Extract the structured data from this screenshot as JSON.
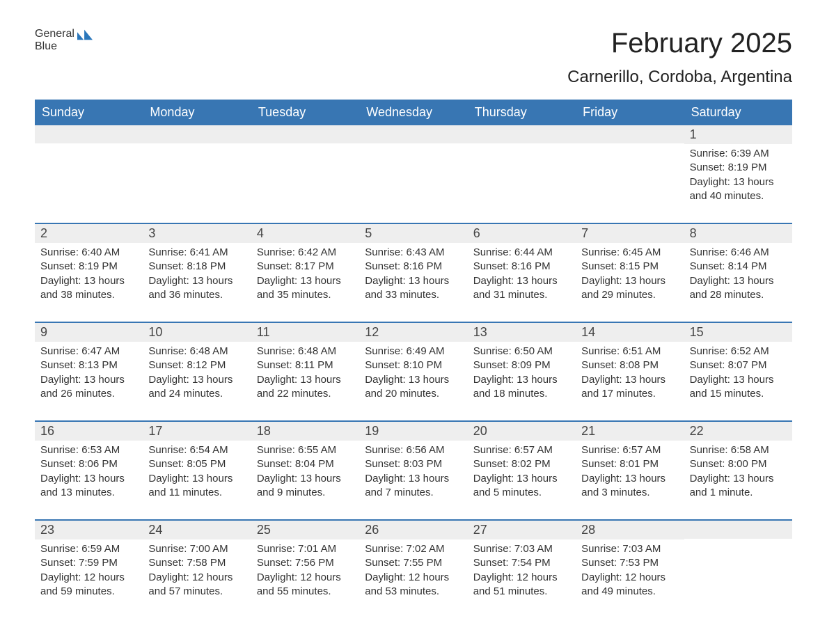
{
  "brand": {
    "part1": "General",
    "part2": "Blue",
    "text_color": "#1a1a1a",
    "accent_color": "#2a77bb"
  },
  "title": "February 2025",
  "location": "Carnerillo, Cordoba, Argentina",
  "colors": {
    "header_bg": "#3876b3",
    "header_text": "#ffffff",
    "row_divider": "#3876b3",
    "daynum_bg": "#eeeeee",
    "body_text": "#333333",
    "page_bg": "#ffffff"
  },
  "fonts": {
    "title_size_pt": 30,
    "location_size_pt": 18,
    "dow_size_pt": 14,
    "body_size_pt": 11
  },
  "days_of_week": [
    "Sunday",
    "Monday",
    "Tuesday",
    "Wednesday",
    "Thursday",
    "Friday",
    "Saturday"
  ],
  "weeks": [
    [
      null,
      null,
      null,
      null,
      null,
      null,
      {
        "n": "1",
        "sunrise": "Sunrise: 6:39 AM",
        "sunset": "Sunset: 8:19 PM",
        "daylight": "Daylight: 13 hours and 40 minutes."
      }
    ],
    [
      {
        "n": "2",
        "sunrise": "Sunrise: 6:40 AM",
        "sunset": "Sunset: 8:19 PM",
        "daylight": "Daylight: 13 hours and 38 minutes."
      },
      {
        "n": "3",
        "sunrise": "Sunrise: 6:41 AM",
        "sunset": "Sunset: 8:18 PM",
        "daylight": "Daylight: 13 hours and 36 minutes."
      },
      {
        "n": "4",
        "sunrise": "Sunrise: 6:42 AM",
        "sunset": "Sunset: 8:17 PM",
        "daylight": "Daylight: 13 hours and 35 minutes."
      },
      {
        "n": "5",
        "sunrise": "Sunrise: 6:43 AM",
        "sunset": "Sunset: 8:16 PM",
        "daylight": "Daylight: 13 hours and 33 minutes."
      },
      {
        "n": "6",
        "sunrise": "Sunrise: 6:44 AM",
        "sunset": "Sunset: 8:16 PM",
        "daylight": "Daylight: 13 hours and 31 minutes."
      },
      {
        "n": "7",
        "sunrise": "Sunrise: 6:45 AM",
        "sunset": "Sunset: 8:15 PM",
        "daylight": "Daylight: 13 hours and 29 minutes."
      },
      {
        "n": "8",
        "sunrise": "Sunrise: 6:46 AM",
        "sunset": "Sunset: 8:14 PM",
        "daylight": "Daylight: 13 hours and 28 minutes."
      }
    ],
    [
      {
        "n": "9",
        "sunrise": "Sunrise: 6:47 AM",
        "sunset": "Sunset: 8:13 PM",
        "daylight": "Daylight: 13 hours and 26 minutes."
      },
      {
        "n": "10",
        "sunrise": "Sunrise: 6:48 AM",
        "sunset": "Sunset: 8:12 PM",
        "daylight": "Daylight: 13 hours and 24 minutes."
      },
      {
        "n": "11",
        "sunrise": "Sunrise: 6:48 AM",
        "sunset": "Sunset: 8:11 PM",
        "daylight": "Daylight: 13 hours and 22 minutes."
      },
      {
        "n": "12",
        "sunrise": "Sunrise: 6:49 AM",
        "sunset": "Sunset: 8:10 PM",
        "daylight": "Daylight: 13 hours and 20 minutes."
      },
      {
        "n": "13",
        "sunrise": "Sunrise: 6:50 AM",
        "sunset": "Sunset: 8:09 PM",
        "daylight": "Daylight: 13 hours and 18 minutes."
      },
      {
        "n": "14",
        "sunrise": "Sunrise: 6:51 AM",
        "sunset": "Sunset: 8:08 PM",
        "daylight": "Daylight: 13 hours and 17 minutes."
      },
      {
        "n": "15",
        "sunrise": "Sunrise: 6:52 AM",
        "sunset": "Sunset: 8:07 PM",
        "daylight": "Daylight: 13 hours and 15 minutes."
      }
    ],
    [
      {
        "n": "16",
        "sunrise": "Sunrise: 6:53 AM",
        "sunset": "Sunset: 8:06 PM",
        "daylight": "Daylight: 13 hours and 13 minutes."
      },
      {
        "n": "17",
        "sunrise": "Sunrise: 6:54 AM",
        "sunset": "Sunset: 8:05 PM",
        "daylight": "Daylight: 13 hours and 11 minutes."
      },
      {
        "n": "18",
        "sunrise": "Sunrise: 6:55 AM",
        "sunset": "Sunset: 8:04 PM",
        "daylight": "Daylight: 13 hours and 9 minutes."
      },
      {
        "n": "19",
        "sunrise": "Sunrise: 6:56 AM",
        "sunset": "Sunset: 8:03 PM",
        "daylight": "Daylight: 13 hours and 7 minutes."
      },
      {
        "n": "20",
        "sunrise": "Sunrise: 6:57 AM",
        "sunset": "Sunset: 8:02 PM",
        "daylight": "Daylight: 13 hours and 5 minutes."
      },
      {
        "n": "21",
        "sunrise": "Sunrise: 6:57 AM",
        "sunset": "Sunset: 8:01 PM",
        "daylight": "Daylight: 13 hours and 3 minutes."
      },
      {
        "n": "22",
        "sunrise": "Sunrise: 6:58 AM",
        "sunset": "Sunset: 8:00 PM",
        "daylight": "Daylight: 13 hours and 1 minute."
      }
    ],
    [
      {
        "n": "23",
        "sunrise": "Sunrise: 6:59 AM",
        "sunset": "Sunset: 7:59 PM",
        "daylight": "Daylight: 12 hours and 59 minutes."
      },
      {
        "n": "24",
        "sunrise": "Sunrise: 7:00 AM",
        "sunset": "Sunset: 7:58 PM",
        "daylight": "Daylight: 12 hours and 57 minutes."
      },
      {
        "n": "25",
        "sunrise": "Sunrise: 7:01 AM",
        "sunset": "Sunset: 7:56 PM",
        "daylight": "Daylight: 12 hours and 55 minutes."
      },
      {
        "n": "26",
        "sunrise": "Sunrise: 7:02 AM",
        "sunset": "Sunset: 7:55 PM",
        "daylight": "Daylight: 12 hours and 53 minutes."
      },
      {
        "n": "27",
        "sunrise": "Sunrise: 7:03 AM",
        "sunset": "Sunset: 7:54 PM",
        "daylight": "Daylight: 12 hours and 51 minutes."
      },
      {
        "n": "28",
        "sunrise": "Sunrise: 7:03 AM",
        "sunset": "Sunset: 7:53 PM",
        "daylight": "Daylight: 12 hours and 49 minutes."
      },
      null
    ]
  ]
}
